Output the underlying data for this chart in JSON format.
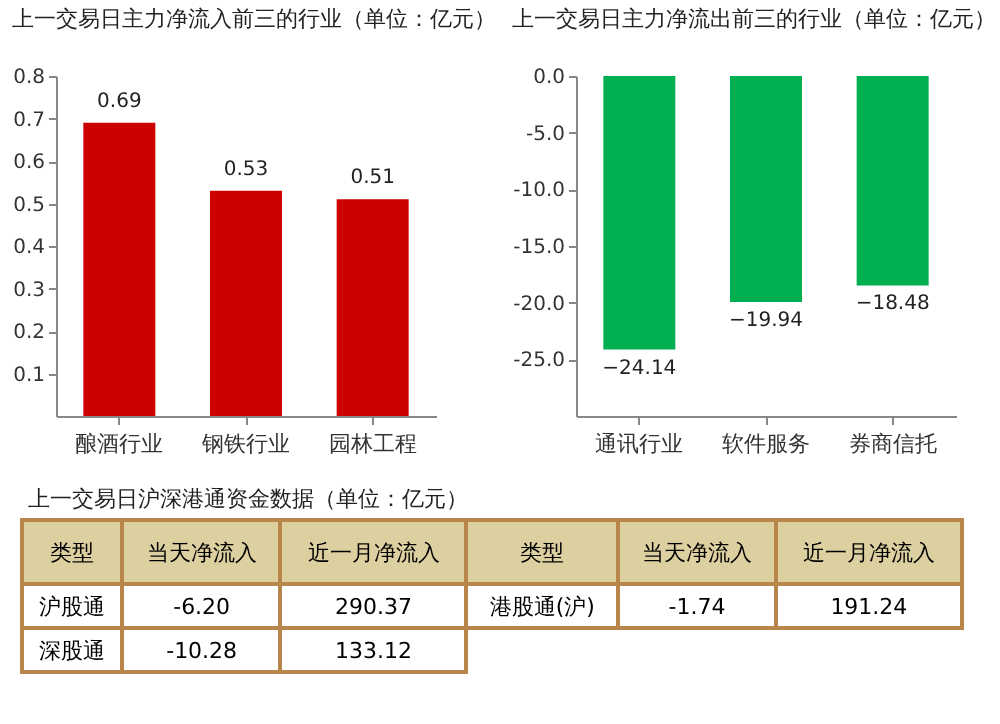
{
  "chart_data": [
    {
      "type": "bar",
      "title": "上一交易日主力净流入前三的行业（单位：亿元）",
      "categories": [
        "酿酒行业",
        "钢铁行业",
        "园林工程"
      ],
      "values": [
        0.69,
        0.53,
        0.51
      ],
      "color": "#cc0000",
      "ylim": [
        0,
        0.8
      ],
      "yticks": [
        0.1,
        0.2,
        0.3,
        0.4,
        0.5,
        0.6,
        0.7,
        0.8
      ],
      "data_labels": true
    },
    {
      "type": "bar",
      "title": "上一交易日主力净流出前三的行业（单位：亿元）",
      "categories": [
        "通讯行业",
        "软件服务",
        "券商信托"
      ],
      "values": [
        -24.14,
        -19.94,
        -18.48
      ],
      "color": "#00b050",
      "ylim": [
        -30,
        0
      ],
      "yticks": [
        {
          "value": 0,
          "label": "0.0"
        },
        {
          "value": -5,
          "label": "-5.0"
        },
        {
          "value": -10,
          "label": "-10.0"
        },
        {
          "value": -15,
          "label": "-15.0"
        },
        {
          "value": -20,
          "label": "-20.0"
        },
        {
          "value": -25,
          "label": "-25.0"
        }
      ],
      "data_labels": true
    },
    {
      "type": "other",
      "title": "上一交易日沪深港通资金数据（单位：亿元）",
      "annotations": [
        "类型",
        "当天净流入",
        "近一月净流入",
        "类型",
        "当天净流入",
        "近一月净流入",
        "沪股通",
        "-6.20",
        "290.37",
        "港股通(沪)",
        "-1.74",
        "191.24",
        "深股通",
        "-10.28",
        "133.12"
      ]
    }
  ]
}
